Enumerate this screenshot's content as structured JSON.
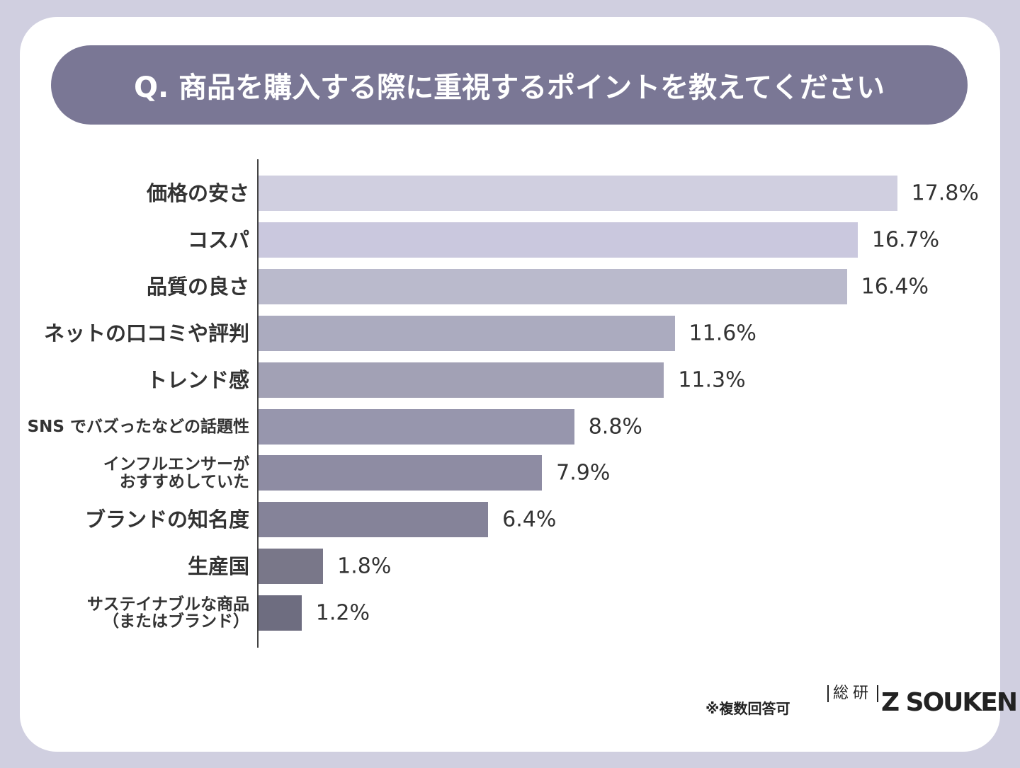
{
  "title": "Q. 商品を購入する際に重視するポイントを教えてください",
  "chart_data": {
    "type": "bar",
    "orientation": "horizontal",
    "categories": [
      "価格の安さ",
      "コスパ",
      "品質の良さ",
      "ネットの口コミや評判",
      "トレンド感",
      "SNS でバズったなどの話題性",
      "インフルエンサーが\nおすすめしていた",
      "ブランドの知名度",
      "生産国",
      "サステイナブルな商品\n（またはブランド）"
    ],
    "values": [
      17.8,
      16.7,
      16.4,
      11.6,
      11.3,
      8.8,
      7.9,
      6.4,
      1.8,
      1.2
    ],
    "value_labels": [
      "17.8%",
      "16.7%",
      "16.4%",
      "11.6%",
      "11.3%",
      "8.8%",
      "7.9%",
      "6.4%",
      "1.8%",
      "1.2%"
    ],
    "colors": [
      "#d0cfe0",
      "#cac8de",
      "#babacc",
      "#ababbf",
      "#a2a1b5",
      "#9796ad",
      "#8e8ca3",
      "#858399",
      "#797789",
      "#6e6d80"
    ],
    "xlim": [
      0,
      20
    ]
  },
  "footnote": "※複数回答可",
  "logo_mark": "総研",
  "logo_text": "Z SOUKEN"
}
